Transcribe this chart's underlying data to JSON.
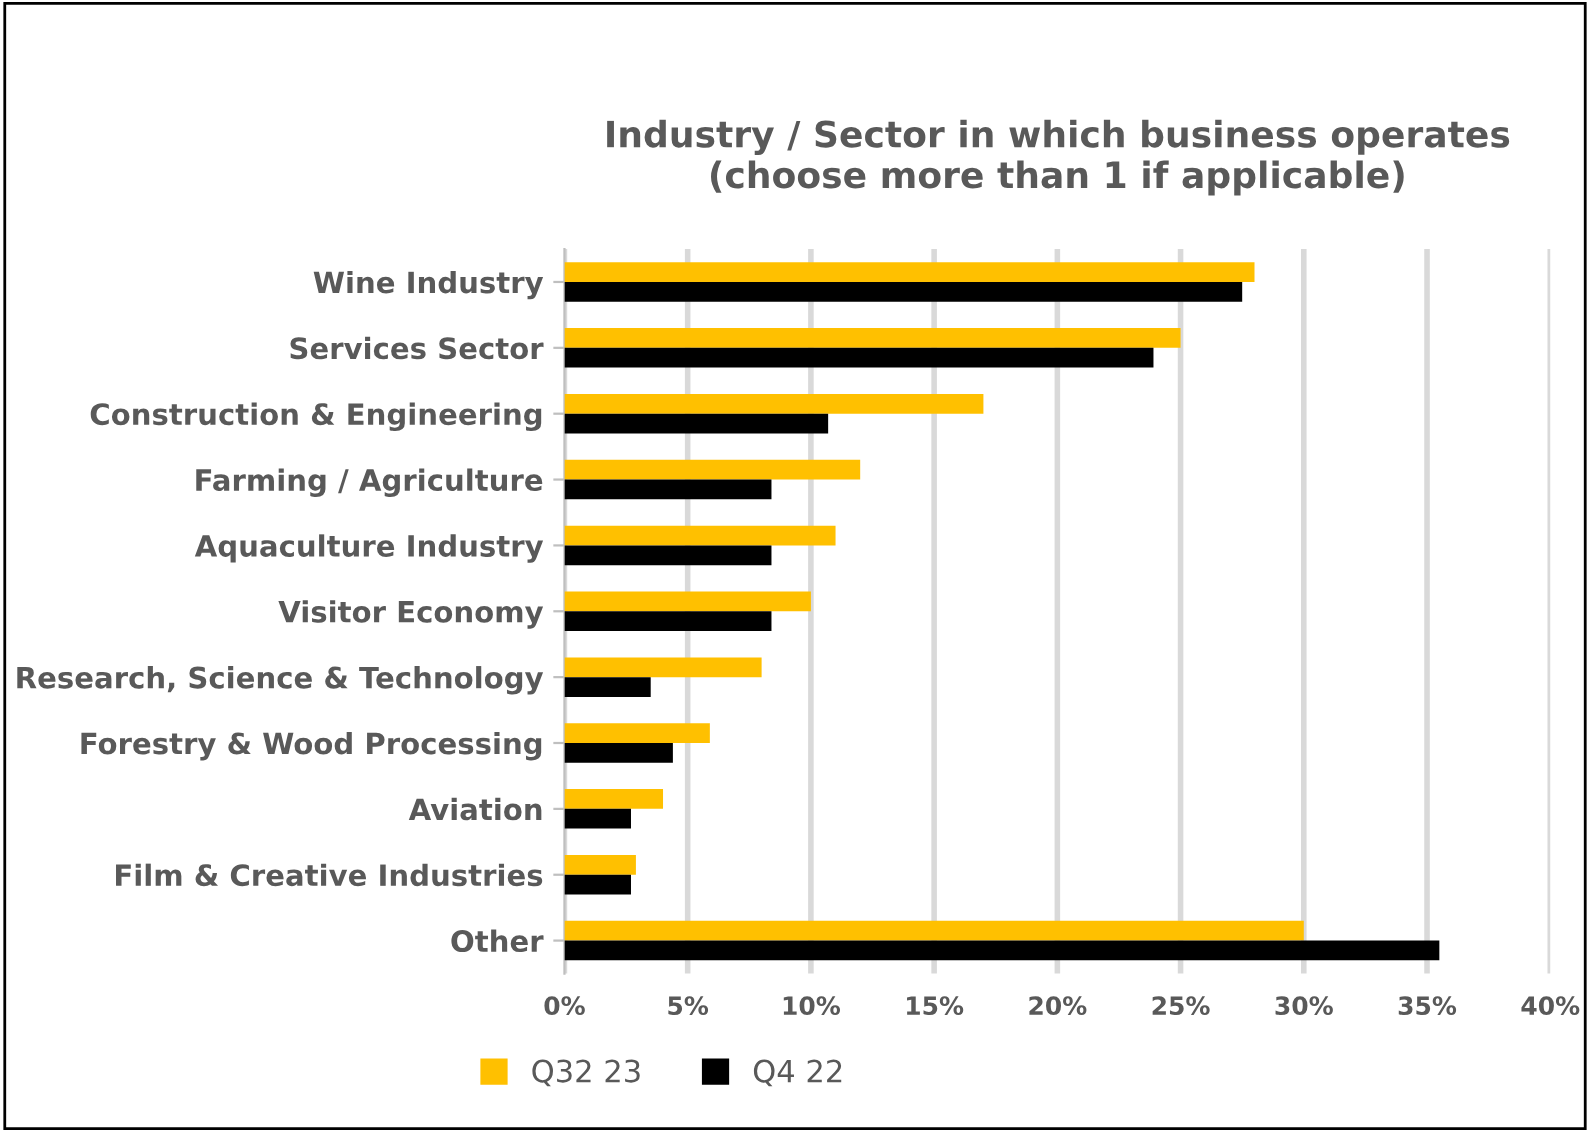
{
  "chart_data": {
    "type": "bar",
    "orientation": "horizontal",
    "title": "Industry / Sector in which business operates\n(choose more than 1 if applicable)",
    "categories": [
      "Wine Industry",
      "Services Sector",
      "Construction & Engineering",
      "Farming / Agriculture",
      "Aquaculture Industry",
      "Visitor Economy",
      "Research, Science & Technology",
      "Forestry & Wood Processing",
      "Aviation",
      "Film & Creative Industries",
      "Other"
    ],
    "series": [
      {
        "name": "Q32 23",
        "color": "#ffc000",
        "values": [
          28,
          25,
          17,
          12,
          11,
          10,
          8,
          5.9,
          4,
          2.9,
          30
        ]
      },
      {
        "name": "Q4 22",
        "color": "#000000",
        "values": [
          27.5,
          23.9,
          10.7,
          8.4,
          8.4,
          8.4,
          3.5,
          4.4,
          2.7,
          2.7,
          35.5
        ]
      }
    ],
    "xlim": [
      0,
      40
    ],
    "xticks": [
      {
        "value": 0,
        "label": "0%"
      },
      {
        "value": 5,
        "label": "5%"
      },
      {
        "value": 10,
        "label": "10%"
      },
      {
        "value": 15,
        "label": "15%"
      },
      {
        "value": 20,
        "label": "20%"
      },
      {
        "value": 25,
        "label": "25%"
      },
      {
        "value": 30,
        "label": "30%"
      },
      {
        "value": 35,
        "label": "35%"
      },
      {
        "value": 40,
        "label": "40%"
      }
    ],
    "grid": "x",
    "legend": "bottom"
  }
}
